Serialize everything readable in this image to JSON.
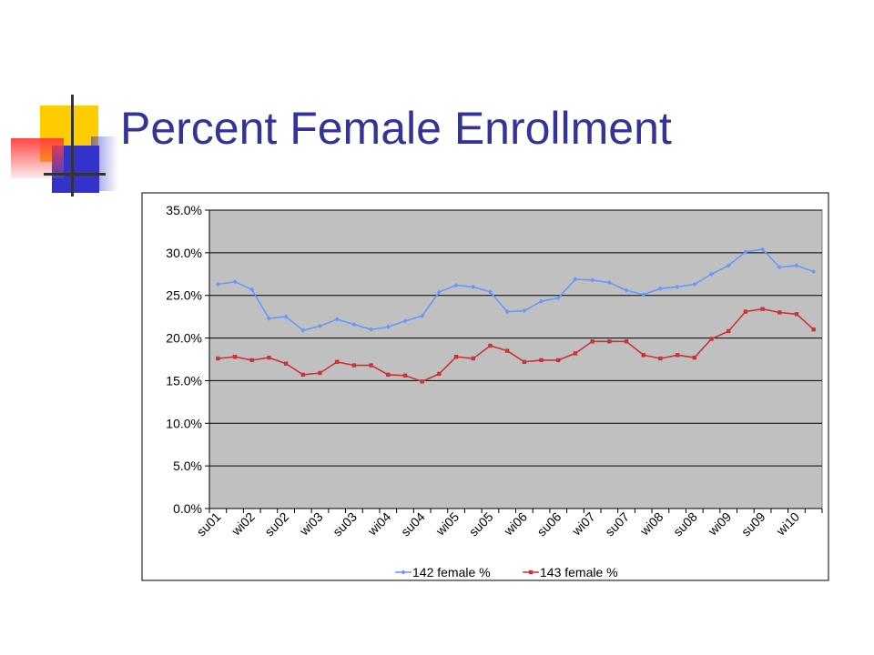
{
  "slide": {
    "title": "Percent Female Enrollment"
  },
  "colors": {
    "title": "#333399",
    "plot_bg": "#c0c0c0",
    "series_142": "#6699ff",
    "series_143": "#cc3333"
  },
  "chart_data": {
    "type": "line",
    "title": "",
    "xlabel": "",
    "ylabel": "",
    "ylim": [
      0,
      35
    ],
    "y_ticks": [
      "0.0%",
      "5.0%",
      "10.0%",
      "15.0%",
      "20.0%",
      "25.0%",
      "30.0%",
      "35.0%"
    ],
    "y_tick_values": [
      0,
      5,
      10,
      15,
      20,
      25,
      30,
      35
    ],
    "grid": "horizontal",
    "legend_position": "bottom",
    "x_tick_labels": [
      "su01",
      "wi02",
      "su02",
      "wi03",
      "su03",
      "wi04",
      "su04",
      "wi05",
      "su05",
      "wi06",
      "su06",
      "wi07",
      "su07",
      "wi08",
      "su08",
      "wi09",
      "su09",
      "wi10"
    ],
    "series": [
      {
        "name": "142 female %",
        "color": "#6699ff",
        "marker": "diamond",
        "values": [
          26.3,
          26.6,
          25.7,
          22.3,
          22.5,
          20.9,
          21.4,
          22.2,
          21.6,
          21.0,
          21.3,
          22.0,
          22.6,
          25.4,
          26.2,
          26.0,
          25.4,
          23.1,
          23.2,
          24.3,
          24.7,
          26.9,
          26.8,
          26.5,
          25.6,
          25.1,
          25.8,
          26.0,
          26.3,
          27.5,
          28.5,
          30.1,
          30.4,
          28.3,
          28.5,
          27.8
        ]
      },
      {
        "name": "143 female %",
        "color": "#cc3333",
        "marker": "square",
        "values": [
          17.6,
          17.8,
          17.4,
          17.7,
          17.0,
          15.7,
          15.9,
          17.2,
          16.8,
          16.8,
          15.7,
          15.6,
          14.9,
          15.8,
          17.8,
          17.6,
          19.1,
          18.5,
          17.2,
          17.4,
          17.4,
          18.2,
          19.6,
          19.6,
          19.6,
          18.0,
          17.6,
          18.0,
          17.7,
          19.9,
          20.8,
          23.1,
          23.4,
          23.0,
          22.8,
          21.0
        ]
      }
    ]
  }
}
